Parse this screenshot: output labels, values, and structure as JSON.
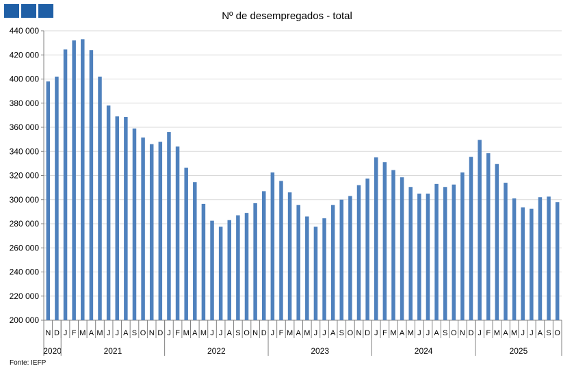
{
  "header": {
    "logo_icon": "ine-logo-blocks",
    "logo_color": "#1f5fa6"
  },
  "chart_data": {
    "type": "bar",
    "title": "Nº de desempregados - total",
    "xlabel": "",
    "ylabel": "",
    "ylim": [
      200000,
      440000
    ],
    "yticks": [
      200000,
      220000,
      240000,
      260000,
      280000,
      300000,
      320000,
      340000,
      360000,
      380000,
      400000,
      420000,
      440000
    ],
    "ytick_labels": [
      "200 000",
      "220 000",
      "240 000",
      "260 000",
      "280 000",
      "300 000",
      "320 000",
      "340 000",
      "360 000",
      "380 000",
      "400 000",
      "420 000",
      "440 000"
    ],
    "grid": true,
    "legend": "none",
    "bar_color": "#4f81bd",
    "categories": [
      "2020-11",
      "2020-12",
      "2021-01",
      "2021-02",
      "2021-03",
      "2021-04",
      "2021-05",
      "2021-06",
      "2021-07",
      "2021-08",
      "2021-09",
      "2021-10",
      "2021-11",
      "2021-12",
      "2022-01",
      "2022-02",
      "2022-03",
      "2022-04",
      "2022-05",
      "2022-06",
      "2022-07",
      "2022-08",
      "2022-09",
      "2022-10",
      "2022-11",
      "2022-12",
      "2023-01",
      "2023-02",
      "2023-03",
      "2023-04",
      "2023-05",
      "2023-06",
      "2023-07",
      "2023-08",
      "2023-09",
      "2023-10",
      "2023-11",
      "2023-12",
      "2024-01",
      "2024-02",
      "2024-03",
      "2024-04",
      "2024-05",
      "2024-06",
      "2024-07",
      "2024-08",
      "2024-09",
      "2024-10",
      "2024-11",
      "2024-12",
      "2025-01",
      "2025-02",
      "2025-03",
      "2025-04",
      "2025-05",
      "2025-06",
      "2025-07",
      "2025-08",
      "2025-09",
      "2025-10"
    ],
    "month_labels": [
      "N",
      "D",
      "J",
      "F",
      "M",
      "A",
      "M",
      "J",
      "J",
      "A",
      "S",
      "O",
      "N",
      "D",
      "J",
      "F",
      "M",
      "A",
      "M",
      "J",
      "J",
      "A",
      "S",
      "O",
      "N",
      "D",
      "J",
      "F",
      "M",
      "A",
      "M",
      "J",
      "J",
      "A",
      "S",
      "O",
      "N",
      "D",
      "J",
      "F",
      "M",
      "A",
      "M",
      "J",
      "J",
      "A",
      "S",
      "O",
      "N",
      "D",
      "J",
      "F",
      "M",
      "A",
      "M",
      "J",
      "J",
      "A",
      "S",
      "O"
    ],
    "values": [
      398000,
      402000,
      424500,
      432000,
      433000,
      424000,
      402000,
      378000,
      369000,
      368500,
      359000,
      351500,
      346000,
      348000,
      356000,
      344000,
      326500,
      314500,
      296500,
      282500,
      277500,
      283000,
      287000,
      289000,
      297000,
      307000,
      322500,
      315500,
      306000,
      295500,
      286000,
      277500,
      284500,
      295500,
      300000,
      303000,
      312000,
      317500,
      335000,
      331000,
      324500,
      318500,
      310500,
      305000,
      305000,
      313000,
      310500,
      312500,
      322500,
      335500,
      349500,
      338500,
      329500,
      314000,
      301000,
      293500,
      292500,
      302000,
      302500,
      298000
    ],
    "year_groups": [
      {
        "label": "2020",
        "start": 0,
        "end": 2
      },
      {
        "label": "2021",
        "start": 2,
        "end": 14
      },
      {
        "label": "2022",
        "start": 14,
        "end": 26
      },
      {
        "label": "2023",
        "start": 26,
        "end": 38
      },
      {
        "label": "2024",
        "start": 38,
        "end": 50
      },
      {
        "label": "2025",
        "start": 50,
        "end": 60
      }
    ]
  },
  "footer": {
    "source": "Fonte: IEFP"
  }
}
